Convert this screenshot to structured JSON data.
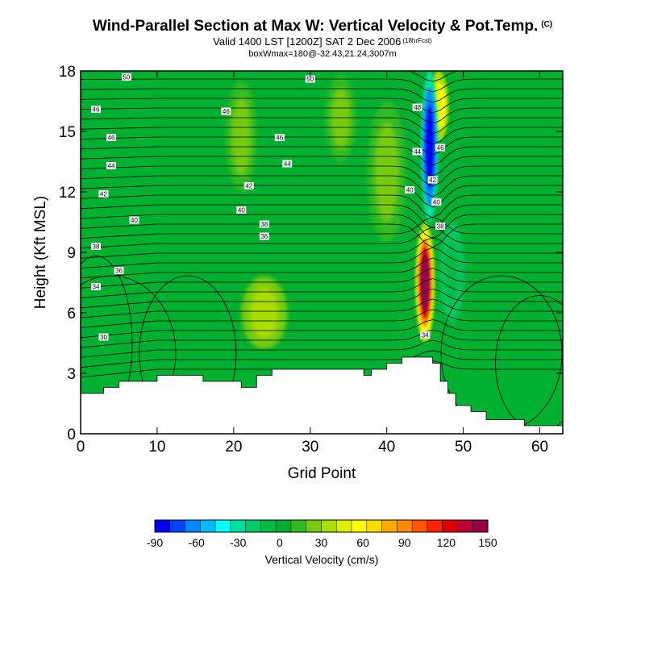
{
  "header": {
    "title": "Wind-Parallel Section at Max W: Vertical Velocity & Pot.Temp.",
    "copyright": "(C)",
    "valid": "Valid 1400 LST [1200Z] SAT 2 Dec 2006",
    "forecast": "(18hrFcst)",
    "box": "boxWmax=180@-32.43,21.24,3007m"
  },
  "chart_data": {
    "type": "heatmap",
    "title": "Wind-Parallel Section at Max W: Vertical Velocity & Pot.Temp.",
    "xlabel": "Grid Point",
    "ylabel": "Height (Kft MSL)",
    "xlim": [
      0,
      63
    ],
    "ylim": [
      0,
      18
    ],
    "x_ticks": [
      "0",
      "10",
      "20",
      "30",
      "40",
      "50",
      "60"
    ],
    "y_ticks": [
      "0",
      "3",
      "6",
      "9",
      "12",
      "15",
      "18"
    ],
    "terrain": [
      [
        0,
        2.0
      ],
      [
        3,
        2.0
      ],
      [
        3,
        2.3
      ],
      [
        5,
        2.3
      ],
      [
        5,
        2.6
      ],
      [
        10,
        2.6
      ],
      [
        10,
        2.9
      ],
      [
        16,
        2.9
      ],
      [
        16,
        2.6
      ],
      [
        21,
        2.6
      ],
      [
        21,
        2.3
      ],
      [
        23,
        2.3
      ],
      [
        23,
        2.9
      ],
      [
        25,
        2.9
      ],
      [
        25,
        3.2
      ],
      [
        37,
        3.2
      ],
      [
        37,
        2.9
      ],
      [
        38,
        2.9
      ],
      [
        38,
        3.2
      ],
      [
        40,
        3.2
      ],
      [
        40,
        3.5
      ],
      [
        42,
        3.5
      ],
      [
        42,
        3.8
      ],
      [
        46,
        3.8
      ],
      [
        46,
        3.5
      ],
      [
        47,
        3.5
      ],
      [
        47,
        2.6
      ],
      [
        48,
        2.6
      ],
      [
        48,
        2.0
      ],
      [
        49,
        2.0
      ],
      [
        49,
        1.4
      ],
      [
        51,
        1.4
      ],
      [
        51,
        1.1
      ],
      [
        53,
        1.1
      ],
      [
        53,
        0.7
      ],
      [
        58,
        0.7
      ],
      [
        58,
        0.4
      ],
      [
        63,
        0.4
      ]
    ],
    "w_bands": [
      {
        "name": "nw-updraft-streak",
        "x": 21,
        "y0": 12.0,
        "y1": 17.5,
        "w": 2.0,
        "value": 10
      },
      {
        "name": "central-updraft-cell",
        "x": 24,
        "y0": 4.2,
        "y1": 7.8,
        "w": 3.0,
        "value": 20
      },
      {
        "name": "right-updraft-streak",
        "x": 40,
        "y0": 9.5,
        "y1": 16.5,
        "w": 2.5,
        "value": 15
      },
      {
        "name": "upper-updraft-streak",
        "x": 34,
        "y0": 13.5,
        "y1": 17.8,
        "w": 2.0,
        "value": 15
      },
      {
        "name": "max-updraft-core",
        "x": 45,
        "y0": 4.5,
        "y1": 10.5,
        "w": 0.8,
        "value": 150
      },
      {
        "name": "upper-updraft",
        "x": 46.8,
        "y0": 14.5,
        "y1": 18,
        "w": 0.8,
        "value": 60
      },
      {
        "name": "downdraft-core",
        "x": 45.6,
        "y0": 10.5,
        "y1": 18,
        "w": 0.7,
        "value": -90
      },
      {
        "name": "lee-downdraft",
        "x": 48.5,
        "y0": 5.5,
        "y1": 10.5,
        "w": 1.5,
        "value": -20
      }
    ],
    "theta_contours": {
      "start": 30,
      "step": 2,
      "labels": [
        {
          "text": "30",
          "x": 3.0,
          "y": 4.8
        },
        {
          "text": "34",
          "x": 2.0,
          "y": 7.3
        },
        {
          "text": "36",
          "x": 5.0,
          "y": 8.1
        },
        {
          "text": "38",
          "x": 2.0,
          "y": 9.3
        },
        {
          "text": "40",
          "x": 7.0,
          "y": 10.6
        },
        {
          "text": "42",
          "x": 3.0,
          "y": 11.9
        },
        {
          "text": "44",
          "x": 4.0,
          "y": 13.3
        },
        {
          "text": "46",
          "x": 4.0,
          "y": 14.7
        },
        {
          "text": "46",
          "x": 2.0,
          "y": 16.1
        },
        {
          "text": "50",
          "x": 6.0,
          "y": 17.7
        },
        {
          "text": "36",
          "x": 24.0,
          "y": 9.8
        },
        {
          "text": "38",
          "x": 24.0,
          "y": 10.4
        },
        {
          "text": "40",
          "x": 21.0,
          "y": 11.1
        },
        {
          "text": "42",
          "x": 22.0,
          "y": 12.3
        },
        {
          "text": "44",
          "x": 27.0,
          "y": 13.4
        },
        {
          "text": "46",
          "x": 26.0,
          "y": 14.7
        },
        {
          "text": "46",
          "x": 19.0,
          "y": 16.0
        },
        {
          "text": "50",
          "x": 30.0,
          "y": 17.6
        },
        {
          "text": "40",
          "x": 43.0,
          "y": 12.1
        },
        {
          "text": "44",
          "x": 44.0,
          "y": 14.0
        },
        {
          "text": "48",
          "x": 44.0,
          "y": 16.2
        },
        {
          "text": "42",
          "x": 46.0,
          "y": 12.6
        },
        {
          "text": "40",
          "x": 46.5,
          "y": 11.5
        },
        {
          "text": "38",
          "x": 47.0,
          "y": 10.3
        },
        {
          "text": "46",
          "x": 47.0,
          "y": 14.2
        },
        {
          "text": "34",
          "x": 45.0,
          "y": 4.9
        }
      ]
    },
    "colorbar": {
      "label": "Vertical Velocity (cm/s)",
      "ticks": [
        "-90",
        "-60",
        "-30",
        "0",
        "30",
        "60",
        "90",
        "120",
        "150"
      ],
      "values": [
        -90,
        -60,
        -30,
        0,
        30,
        60,
        90,
        120,
        150
      ],
      "colors": [
        "#0000ff",
        "#0044ff",
        "#0088ff",
        "#00bbff",
        "#00ffff",
        "#00e0a0",
        "#00cc66",
        "#00bb44",
        "#00b030",
        "#33bb22",
        "#77cc11",
        "#aadd00",
        "#ddee00",
        "#ffff00",
        "#ffdd00",
        "#ffaa00",
        "#ff8800",
        "#ff5500",
        "#ff2200",
        "#dd0000",
        "#bb0033",
        "#990044"
      ]
    }
  }
}
